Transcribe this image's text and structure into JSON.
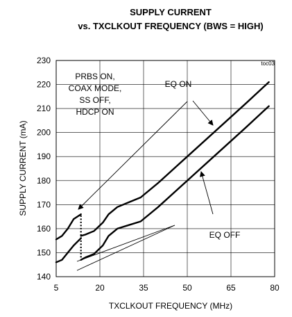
{
  "chart_data": {
    "type": "line",
    "title_lines": [
      "SUPPLY CURRENT",
      "vs. TXCLKOUT FREQUENCY (BWS = HIGH)"
    ],
    "xlabel": "TXCLKOUT FREQUENCY (MHz)",
    "ylabel": "SUPPLY CURRENT (mA)",
    "tag": "toc03",
    "xlim": [
      5,
      80
    ],
    "ylim": [
      140,
      230
    ],
    "xticks": [
      5,
      20,
      35,
      50,
      65,
      80
    ],
    "yticks": [
      140,
      150,
      160,
      170,
      180,
      190,
      200,
      210,
      220,
      230
    ],
    "grid": true,
    "series": [
      {
        "name": "EQ ON",
        "segments": [
          {
            "x": [
              5,
              7,
              9,
              11,
              13.5
            ],
            "y": [
              155.5,
              157,
              160,
              164,
              166
            ]
          },
          {
            "x": [
              13.5,
              15,
              18,
              21,
              23,
              26,
              30,
              34,
              40,
              50,
              60,
              70,
              78
            ],
            "y": [
              157,
              157.5,
              159,
              162.5,
              166,
              169,
              171,
              173,
              179,
              190,
              201,
              212,
              221
            ]
          }
        ]
      },
      {
        "name": "EQ OFF",
        "segments": [
          {
            "x": [
              5,
              7,
              9,
              11,
              13.5
            ],
            "y": [
              146,
              147,
              150,
              153,
              156
            ]
          },
          {
            "x": [
              13.5,
              15,
              18,
              21,
              23,
              26,
              30,
              34,
              40,
              50,
              60,
              70,
              78
            ],
            "y": [
              147,
              148,
              149.5,
              153,
              157,
              160,
              161.5,
              163,
              169,
              180,
              191,
              202,
              211
            ]
          }
        ]
      }
    ],
    "dotted_marker": {
      "x": 13.5,
      "y": [
        148,
        166
      ]
    },
    "annotations": {
      "conditions": [
        "PRBS ON,",
        "COAX MODE,",
        "SS OFF,",
        "HDCP ON"
      ],
      "eq_on": "EQ ON",
      "eq_off": "EQ OFF"
    }
  }
}
